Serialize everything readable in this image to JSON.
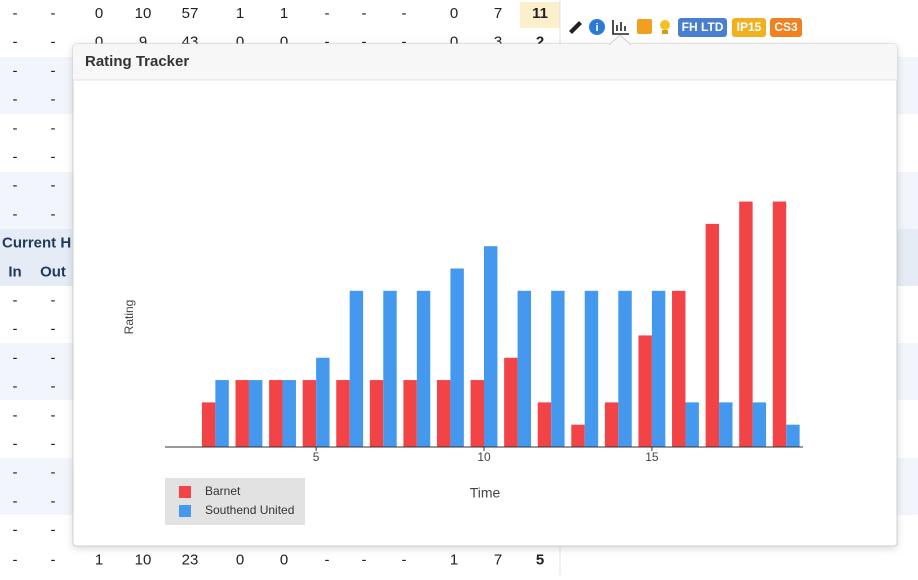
{
  "table": {
    "rows": [
      [
        "-",
        "-",
        "0",
        "10",
        "57",
        "1",
        "1",
        "-",
        "-",
        "-",
        "0",
        "7",
        "11"
      ],
      [
        "-",
        "-",
        "0",
        "9",
        "43",
        "0",
        "0",
        "-",
        "-",
        "-",
        "0",
        "3",
        "2"
      ],
      [
        "-",
        "-"
      ],
      [
        "-",
        "-"
      ],
      [
        "-",
        "-"
      ],
      [
        "-",
        "-"
      ],
      [
        "-",
        "-"
      ],
      [
        "-",
        "-"
      ],
      [
        "Current H"
      ],
      [
        "In",
        "Out"
      ],
      [
        "-",
        "-"
      ],
      [
        "-",
        "-"
      ],
      [
        "-",
        "-"
      ],
      [
        "-",
        "-"
      ],
      [
        "-",
        "-"
      ],
      [
        "-",
        "-"
      ],
      [
        "-",
        "-"
      ],
      [
        "-",
        "-"
      ],
      [
        "-",
        "-"
      ],
      [
        "-",
        "-",
        "1",
        "10",
        "23",
        "0",
        "0",
        "-",
        "-",
        "-",
        "1",
        "7",
        "5"
      ]
    ],
    "badges": [
      "FH LTD",
      "IP15",
      "CS3"
    ]
  },
  "chart_data": {
    "type": "bar",
    "title": "Rating Tracker",
    "y_label": "Rating",
    "x_label": "Time",
    "x": [
      2,
      3,
      4,
      5,
      6,
      7,
      8,
      9,
      10,
      11,
      12,
      13,
      14,
      15,
      16,
      17,
      18,
      19
    ],
    "series": [
      {
        "name": "Barnet",
        "color": "#f24346",
        "values": [
          2,
          3,
          3,
          3,
          3,
          3,
          3,
          3,
          3,
          4,
          2,
          1,
          2,
          5,
          7,
          10,
          11,
          11
        ]
      },
      {
        "name": "Southend United",
        "color": "#4499ee",
        "values": [
          3,
          3,
          3,
          4,
          7,
          7,
          7,
          8,
          9,
          7,
          7,
          7,
          7,
          7,
          2,
          2,
          2,
          1
        ]
      }
    ],
    "xlim": [
      0.5,
      19.5
    ],
    "xticks": [
      5,
      10,
      15
    ],
    "ylim": [
      0,
      16
    ],
    "legend": "bottom-left"
  }
}
